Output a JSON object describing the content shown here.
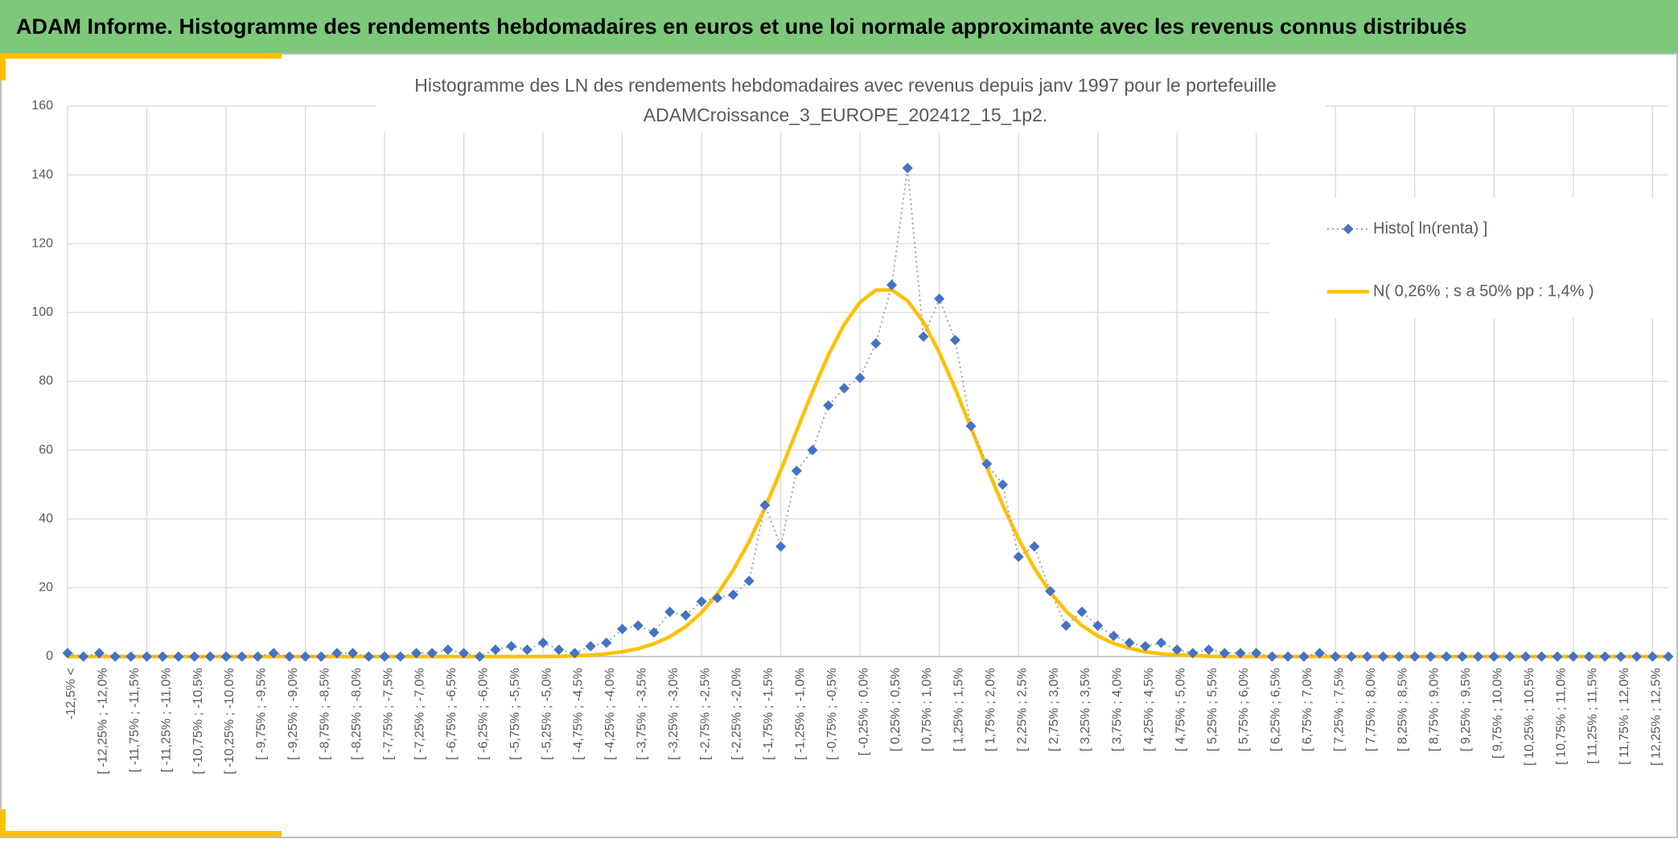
{
  "header": {
    "title": "ADAM Informe. Histogramme des rendements hebdomadaires en euros et une loi normale approximante avec les revenus connus distribués"
  },
  "chart_data": {
    "type": "line",
    "title": [
      "Histogramme des LN des rendements hebdomadaires avec revenus depuis janv 1997 pour le portefeuille",
      "ADAMCroissance_3_EUROPE_202412_15_1p2."
    ],
    "categories": [
      "-12,5% <",
      null,
      "[ -12,25% ; -12,0%",
      null,
      "[ -11,75% ; -11,5%",
      null,
      "[ -11,25% ; -11,0%",
      null,
      "[ -10,75% ; -10,5%",
      null,
      "[ -10,25% ; -10,0%",
      null,
      "[ -9,75% ; -9,5%",
      null,
      "[ -9,25% ; -9,0%",
      null,
      "[ -8,75% ; -8,5%",
      null,
      "[ -8,25% ; -8,0%",
      null,
      "[ -7,75% ; -7,5%",
      null,
      "[ -7,25% ; -7,0%",
      null,
      "[ -6,75% ; -6,5%",
      null,
      "[ -6,25% ; -6,0%",
      null,
      "[ -5,75% ; -5,5%",
      null,
      "[ -5,25% ; -5,0%",
      null,
      "[ -4,75% ; -4,5%",
      null,
      "[ -4,25% ; -4,0%",
      null,
      "[ -3,75% ; -3,5%",
      null,
      "[ -3,25% ; -3,0%",
      null,
      "[ -2,75% ; -2,5%",
      null,
      "[ -2,25% ; -2,0%",
      null,
      "[ -1,75% ; -1,5%",
      null,
      "[ -1,25% ; -1,0%",
      null,
      "[ -0,75% ; -0,5%",
      null,
      "[ -0,25% ; 0,0%",
      null,
      "[ 0,25% ; 0,5%",
      null,
      "[ 0,75% ; 1,0%",
      null,
      "[ 1,25% ; 1,5%",
      null,
      "[ 1,75% ; 2,0%",
      null,
      "[ 2,25% ; 2,5%",
      null,
      "[ 2,75% ; 3,0%",
      null,
      "[ 3,25% ; 3,5%",
      null,
      "[ 3,75% ; 4,0%",
      null,
      "[ 4,25% ; 4,5%",
      null,
      "[ 4,75% ; 5,0%",
      null,
      "[ 5,25% ; 5,5%",
      null,
      "[ 5,75% ; 6,0%",
      null,
      "[ 6,25% ; 6,5%",
      null,
      "[ 6,75% ; 7,0%",
      null,
      "[ 7,25% ; 7,5%",
      null,
      "[ 7,75% ; 8,0%",
      null,
      "[ 8,25% ; 8,5%",
      null,
      "[ 8,75% ; 9,0%",
      null,
      "[ 9,25% ; 9,5%",
      null,
      "[ 9,75% ; 10,0%",
      null,
      "[ 10,25% ; 10,5%",
      null,
      "[ 10,75% ; 11,0%",
      null,
      "[ 11,25% ; 11,5%",
      null,
      "[ 11,75% ; 12,0%",
      null,
      "[ 12,25% ; 12,5%",
      null
    ],
    "series": [
      {
        "name": "Histo[ ln(renta) ]",
        "color": "#4472c4",
        "line_color": "#a5a5a5",
        "marker": "diamond",
        "dashed": true,
        "values": [
          1,
          0,
          1,
          0,
          0,
          0,
          0,
          0,
          0,
          0,
          0,
          0,
          0,
          1,
          0,
          0,
          0,
          1,
          1,
          0,
          0,
          0,
          1,
          1,
          2,
          1,
          0,
          2,
          3,
          2,
          4,
          2,
          1,
          3,
          4,
          8,
          9,
          7,
          13,
          12,
          16,
          17,
          18,
          22,
          44,
          32,
          54,
          60,
          73,
          78,
          81,
          91,
          108,
          142,
          93,
          104,
          92,
          67,
          56,
          50,
          29,
          32,
          19,
          9,
          13,
          9,
          6,
          4,
          3,
          4,
          2,
          1,
          2,
          1,
          1,
          1,
          0,
          0,
          0,
          1,
          0,
          0,
          0,
          0,
          0,
          0,
          0,
          0,
          0,
          0,
          0,
          0,
          0,
          0,
          0,
          0,
          0,
          0,
          0,
          0,
          0,
          0
        ]
      },
      {
        "name": "N( 0,26% ; s a 50% pp : 1,4% )",
        "color": "#ffc000",
        "values": [
          0,
          0,
          0,
          0,
          0,
          0,
          0,
          0,
          0,
          0,
          0,
          0,
          0,
          0,
          0,
          0,
          0,
          0,
          0,
          0,
          0,
          0,
          0,
          0,
          0,
          0,
          0,
          0,
          0,
          0,
          0,
          0.1,
          0.2,
          0.4,
          0.8,
          1.4,
          2.3,
          3.7,
          5.8,
          8.7,
          12.8,
          18.2,
          25.1,
          33.4,
          43.2,
          54.1,
          65.6,
          77.0,
          87.6,
          96.5,
          103.0,
          106.5,
          106.6,
          103.4,
          97.2,
          88.4,
          77.9,
          66.5,
          55.0,
          44.1,
          34.2,
          25.7,
          18.7,
          13.2,
          9.0,
          6.0,
          3.8,
          2.4,
          1.4,
          0.8,
          0.5,
          0.3,
          0.1,
          0,
          0,
          0,
          0,
          0,
          0,
          0,
          0,
          0,
          0,
          0,
          0,
          0,
          0,
          0,
          0,
          0,
          0,
          0,
          0,
          0,
          0,
          0,
          0,
          0,
          0,
          0,
          0,
          0
        ]
      }
    ],
    "ylim": [
      0,
      160
    ],
    "yticks": [
      0,
      20,
      40,
      60,
      80,
      100,
      120,
      140,
      160
    ],
    "grid": true,
    "legend": "right"
  }
}
